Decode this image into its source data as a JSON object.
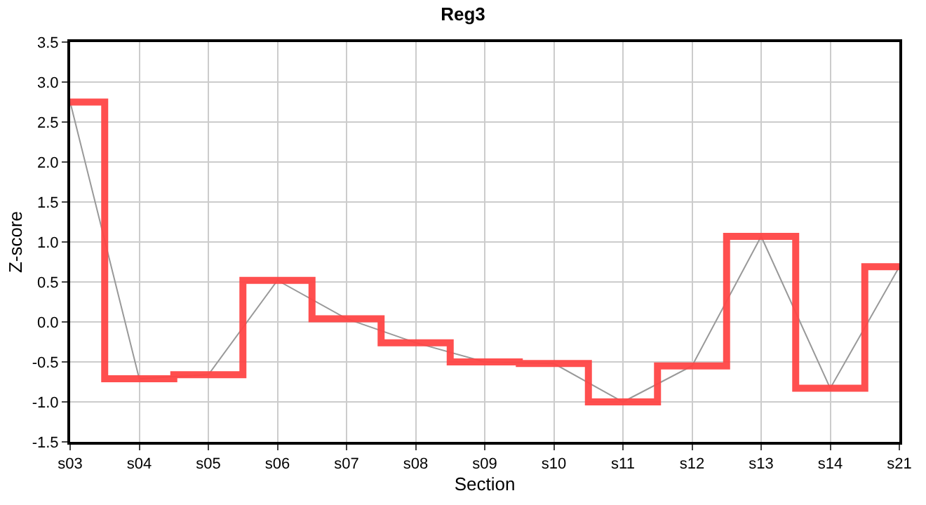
{
  "chart_data": {
    "type": "line",
    "title": "Reg3",
    "xlabel": "Section",
    "ylabel": "Z-score",
    "categories": [
      "s03",
      "s04",
      "s05",
      "s06",
      "s07",
      "s08",
      "s09",
      "s10",
      "s11",
      "s12",
      "s13",
      "s14",
      "s21"
    ],
    "series": [
      {
        "color": "#999999",
        "values": [
          2.75,
          -0.71,
          -0.66,
          0.52,
          0.04,
          -0.26,
          -0.5,
          -0.52,
          -1.0,
          -0.55,
          1.07,
          -0.83,
          0.69
        ]
      },
      {
        "type": "step",
        "color": "#ff4646",
        "values": [
          2.75,
          -0.71,
          -0.66,
          0.52,
          0.04,
          -0.26,
          -0.5,
          -0.52,
          -1.0,
          -0.55,
          1.07,
          -0.83,
          0.69
        ]
      }
    ],
    "ylim": [
      -1.5,
      3.5
    ],
    "yticks": [
      -1.5,
      {
        "value": -1,
        "label": "-1.0"
      },
      -0.5,
      {
        "value": 0,
        "label": "0.0"
      },
      0.5,
      {
        "value": 1,
        "label": "1.0"
      },
      1.5,
      {
        "value": 2,
        "label": "2.0"
      },
      2.5,
      {
        "value": 3,
        "label": "3.0"
      },
      3.5
    ],
    "grid": true
  }
}
